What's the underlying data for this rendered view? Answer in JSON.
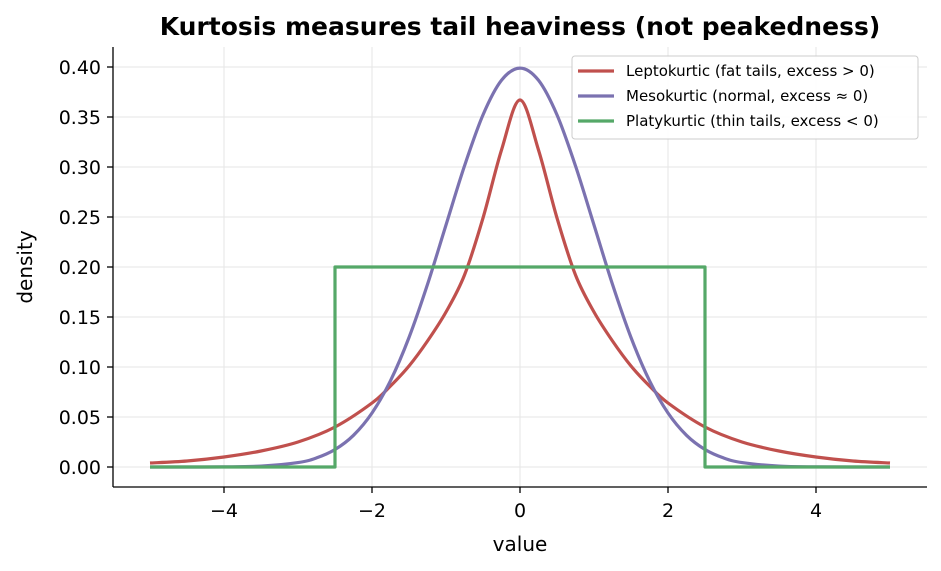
{
  "chart_data": {
    "type": "line",
    "title": "Kurtosis measures tail heaviness (not peakedness)",
    "xlabel": "value",
    "ylabel": "density",
    "xlim": [
      -5.5,
      5.5
    ],
    "ylim": [
      -0.02,
      0.42
    ],
    "x_ticks": [
      -4,
      -2,
      0,
      2,
      4
    ],
    "x_tick_labels": [
      "−4",
      "−2",
      "0",
      "2",
      "4"
    ],
    "y_ticks": [
      0.0,
      0.05,
      0.1,
      0.15,
      0.2,
      0.25,
      0.3,
      0.35,
      0.4
    ],
    "y_tick_labels": [
      "0.00",
      "0.05",
      "0.10",
      "0.15",
      "0.20",
      "0.25",
      "0.30",
      "0.35",
      "0.40"
    ],
    "grid": true,
    "legend_position": "top-right",
    "series": [
      {
        "name": "Leptokurtic (fat tails, excess > 0)",
        "color": "#c0504d",
        "x": [
          -5.0,
          -4.5,
          -4.0,
          -3.5,
          -3.0,
          -2.5,
          -2.0,
          -1.75,
          -1.5,
          -1.25,
          -1.0,
          -0.75,
          -0.5,
          -0.25,
          0.0,
          0.25,
          0.5,
          0.75,
          1.0,
          1.25,
          1.5,
          1.75,
          2.0,
          2.5,
          3.0,
          3.5,
          4.0,
          4.5,
          5.0
        ],
        "y": [
          0.004,
          0.006,
          0.01,
          0.016,
          0.025,
          0.04,
          0.064,
          0.081,
          0.101,
          0.126,
          0.155,
          0.192,
          0.249,
          0.317,
          0.367,
          0.317,
          0.249,
          0.192,
          0.155,
          0.126,
          0.101,
          0.081,
          0.064,
          0.04,
          0.025,
          0.016,
          0.01,
          0.006,
          0.004
        ]
      },
      {
        "name": "Mesokurtic (normal, excess ≈ 0)",
        "color": "#7b72b0",
        "x": [
          -5.0,
          -4.5,
          -4.0,
          -3.5,
          -3.0,
          -2.75,
          -2.5,
          -2.25,
          -2.0,
          -1.75,
          -1.5,
          -1.25,
          -1.0,
          -0.75,
          -0.5,
          -0.25,
          0.0,
          0.25,
          0.5,
          0.75,
          1.0,
          1.25,
          1.5,
          1.75,
          2.0,
          2.25,
          2.5,
          2.75,
          3.0,
          3.5,
          4.0,
          4.5,
          5.0
        ],
        "y": [
          0.0,
          0.0,
          0.0001,
          0.0009,
          0.0044,
          0.0091,
          0.0175,
          0.0317,
          0.054,
          0.0863,
          0.1295,
          0.1826,
          0.242,
          0.3011,
          0.3521,
          0.3867,
          0.3989,
          0.3867,
          0.3521,
          0.3011,
          0.242,
          0.1826,
          0.1295,
          0.0863,
          0.054,
          0.0317,
          0.0175,
          0.0091,
          0.0044,
          0.0009,
          0.0001,
          0.0,
          0.0
        ]
      },
      {
        "name": "Platykurtic (thin tails, excess < 0)",
        "color": "#55a868",
        "x": [
          -5.0,
          -2.5,
          -2.5,
          2.5,
          2.5,
          5.0
        ],
        "y": [
          0.0,
          0.0,
          0.2,
          0.2,
          0.0,
          0.0
        ]
      }
    ]
  }
}
